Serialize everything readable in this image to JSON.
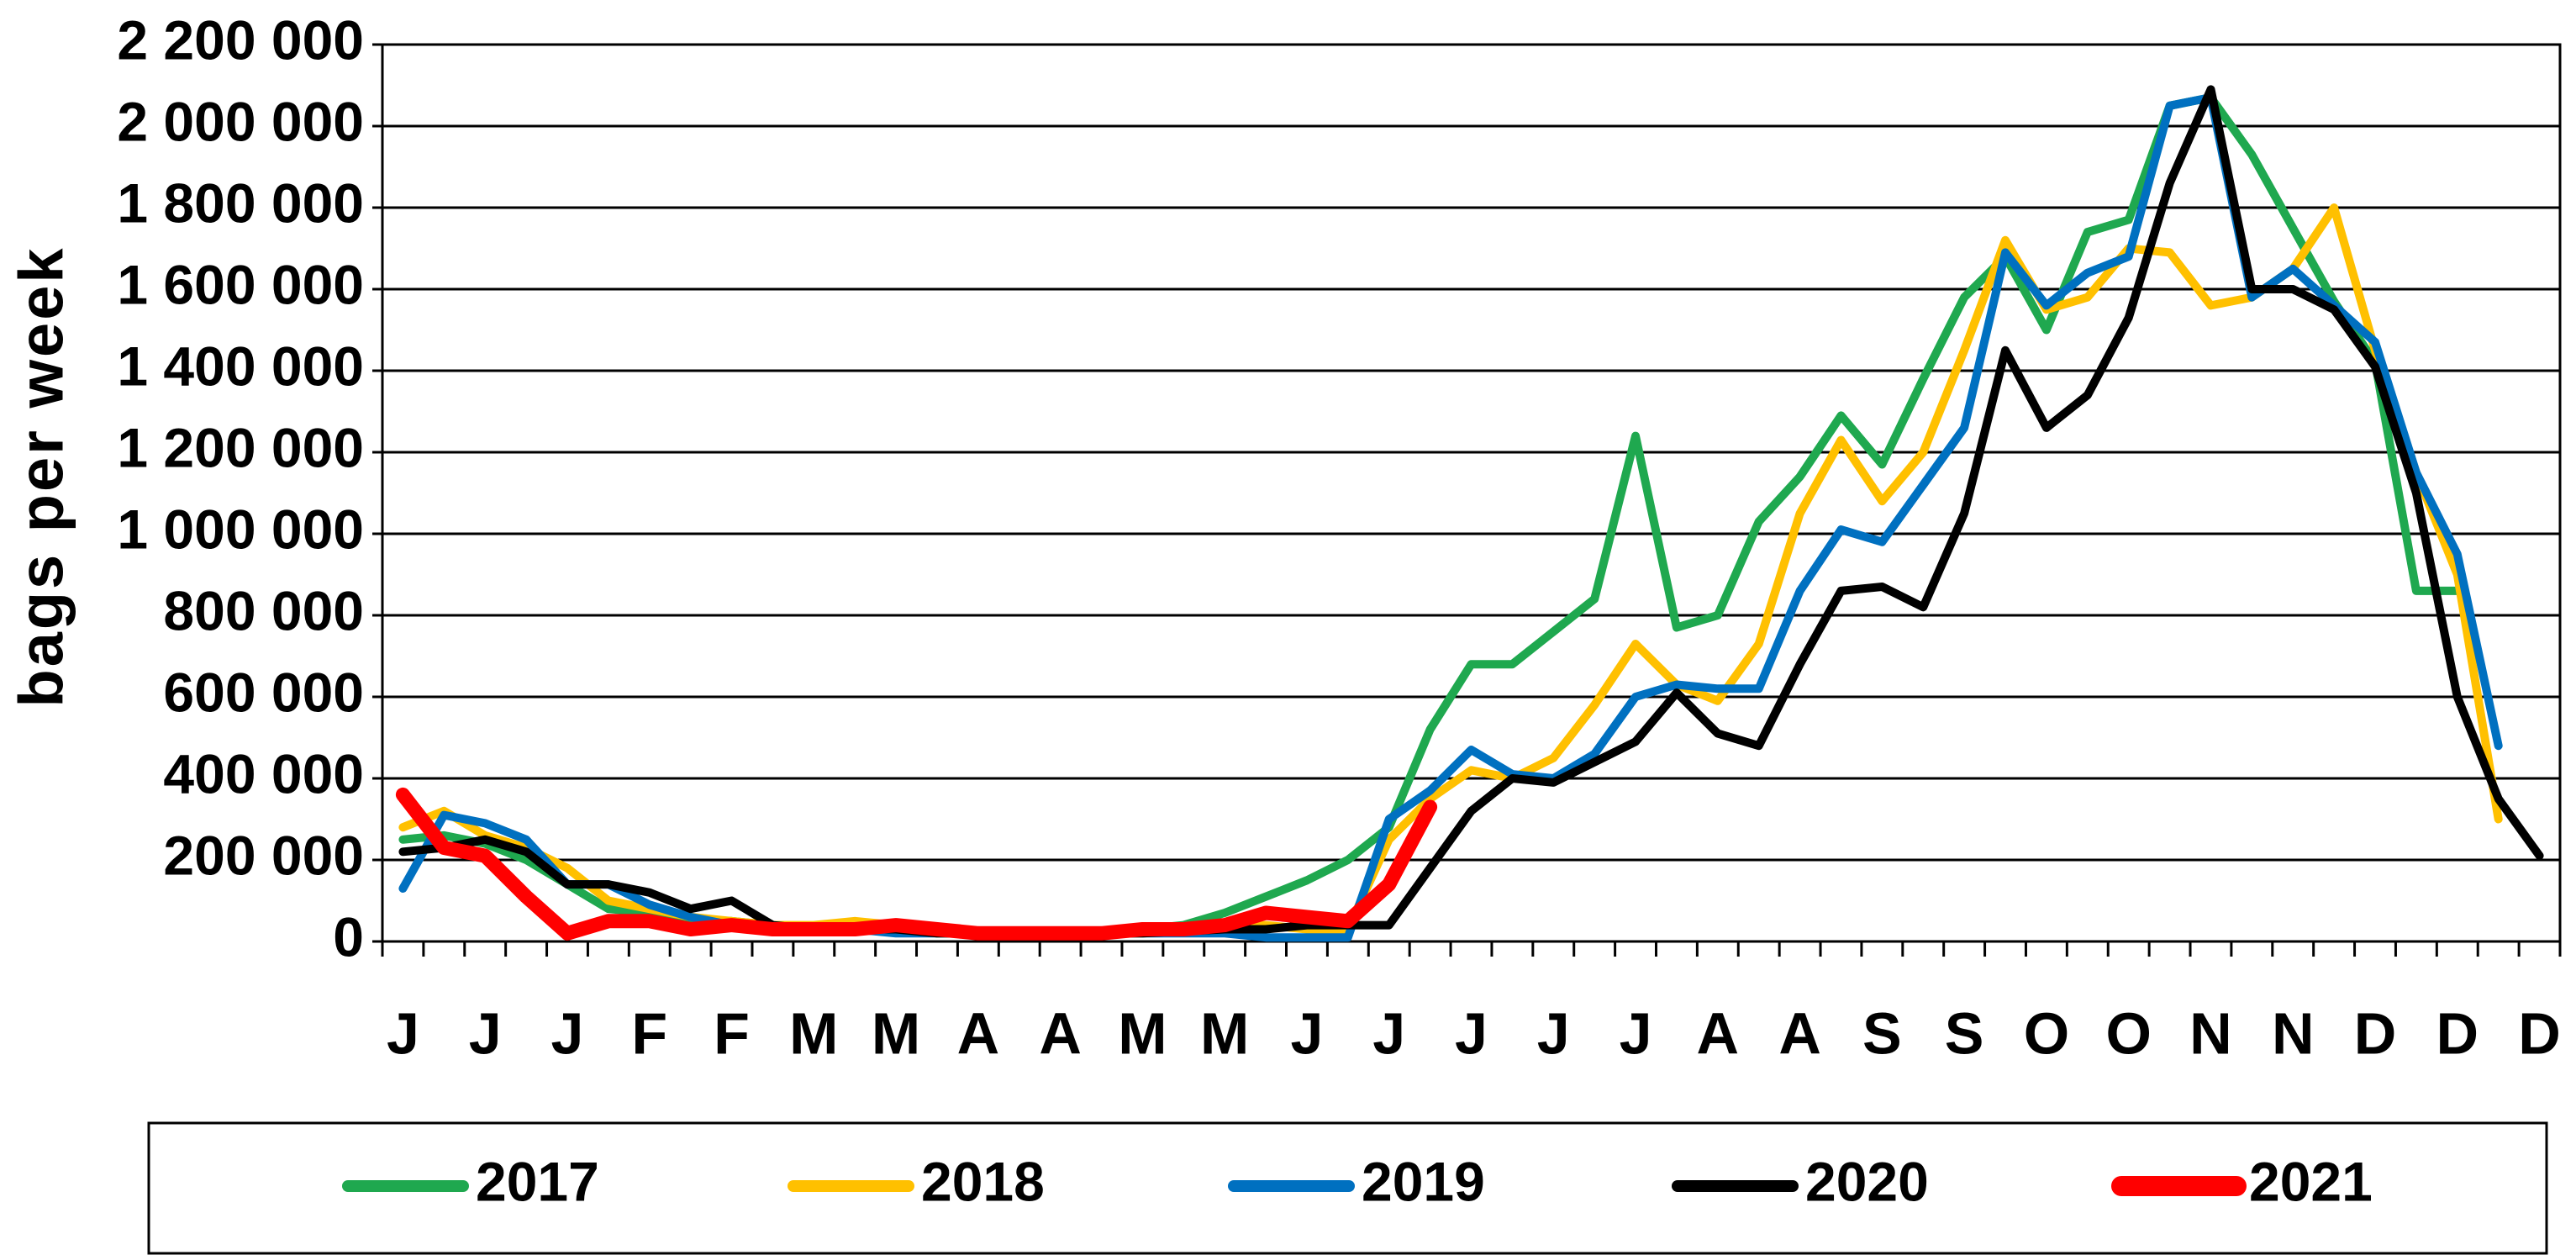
{
  "chart_data": {
    "type": "line",
    "y_label": "bags per week",
    "categories": [
      "J",
      null,
      "J",
      null,
      "J",
      null,
      "F",
      null,
      "F",
      null,
      "M",
      null,
      "M",
      null,
      "A",
      null,
      "A",
      null,
      "M",
      null,
      "M",
      null,
      "J",
      null,
      "J",
      null,
      "J",
      null,
      "J",
      null,
      "J",
      null,
      "A",
      null,
      "A",
      null,
      "S",
      null,
      "S",
      null,
      "O",
      null,
      "O",
      null,
      "N",
      null,
      "N",
      null,
      "D",
      null,
      "D",
      null,
      "D"
    ],
    "ylim": [
      0,
      2200000
    ],
    "yticks": [
      0,
      {
        "value": 200000,
        "label": "200 000"
      },
      {
        "value": 400000,
        "label": "400 000"
      },
      {
        "value": 600000,
        "label": "600 000"
      },
      {
        "value": 800000,
        "label": "800 000"
      },
      {
        "value": 1000000,
        "label": "1 000 000"
      },
      {
        "value": 1200000,
        "label": "1 200 000"
      },
      {
        "value": 1400000,
        "label": "1 400 000"
      },
      {
        "value": 1600000,
        "label": "1 600 000"
      },
      {
        "value": 1800000,
        "label": "1 800 000"
      },
      {
        "value": 2000000,
        "label": "2 000 000"
      },
      {
        "value": 2200000,
        "label": "2 200 000"
      }
    ],
    "grid": true,
    "legend": "bottom",
    "series": [
      {
        "name": "2017",
        "color": "#1fa84f",
        "values": [
          250000,
          260000,
          240000,
          200000,
          140000,
          80000,
          70000,
          50000,
          50000,
          40000,
          30000,
          30000,
          30000,
          20000,
          20000,
          20000,
          20000,
          25000,
          30000,
          40000,
          70000,
          110000,
          150000,
          200000,
          280000,
          520000,
          680000,
          680000,
          760000,
          840000,
          1240000,
          770000,
          800000,
          1030000,
          1140000,
          1290000,
          1170000,
          1380000,
          1580000,
          1680000,
          1500000,
          1740000,
          1770000,
          2050000,
          2070000,
          1930000,
          1750000,
          1570000,
          1420000,
          860000,
          860000,
          null,
          null
        ]
      },
      {
        "name": "2018",
        "color": "#ffc000",
        "values": [
          280000,
          320000,
          260000,
          230000,
          180000,
          100000,
          80000,
          60000,
          50000,
          40000,
          40000,
          50000,
          40000,
          30000,
          20000,
          20000,
          20000,
          20000,
          20000,
          25000,
          30000,
          40000,
          30000,
          30000,
          250000,
          350000,
          420000,
          400000,
          450000,
          580000,
          730000,
          630000,
          590000,
          730000,
          1050000,
          1230000,
          1080000,
          1200000,
          1450000,
          1720000,
          1550000,
          1580000,
          1700000,
          1690000,
          1560000,
          1580000,
          1650000,
          1800000,
          1450000,
          1150000,
          900000,
          300000,
          null
        ]
      },
      {
        "name": "2019",
        "color": "#0070c0",
        "values": [
          130000,
          310000,
          290000,
          250000,
          140000,
          140000,
          90000,
          60000,
          40000,
          30000,
          30000,
          30000,
          20000,
          20000,
          20000,
          20000,
          20000,
          20000,
          20000,
          20000,
          20000,
          10000,
          10000,
          10000,
          300000,
          370000,
          470000,
          410000,
          400000,
          460000,
          600000,
          630000,
          620000,
          620000,
          860000,
          1010000,
          980000,
          1120000,
          1260000,
          1690000,
          1560000,
          1640000,
          1680000,
          2050000,
          2070000,
          1580000,
          1650000,
          1560000,
          1470000,
          1150000,
          950000,
          480000,
          null
        ]
      },
      {
        "name": "2020",
        "color": "#000000",
        "values": [
          220000,
          230000,
          250000,
          220000,
          140000,
          140000,
          120000,
          80000,
          100000,
          40000,
          30000,
          30000,
          30000,
          20000,
          20000,
          20000,
          20000,
          20000,
          20000,
          25000,
          30000,
          30000,
          40000,
          40000,
          40000,
          180000,
          320000,
          400000,
          390000,
          440000,
          490000,
          610000,
          510000,
          480000,
          680000,
          860000,
          870000,
          820000,
          1050000,
          1450000,
          1260000,
          1340000,
          1530000,
          1860000,
          2090000,
          1600000,
          1600000,
          1550000,
          1410000,
          1100000,
          600000,
          350000,
          210000
        ]
      },
      {
        "name": "2021",
        "color": "#ff0000",
        "values": [
          360000,
          230000,
          210000,
          110000,
          20000,
          50000,
          50000,
          30000,
          40000,
          30000,
          30000,
          30000,
          40000,
          30000,
          20000,
          20000,
          20000,
          20000,
          30000,
          30000,
          40000,
          70000,
          60000,
          50000,
          140000,
          330000,
          null,
          null,
          null,
          null,
          null,
          null,
          null,
          null,
          null,
          null,
          null,
          null,
          null,
          null,
          null,
          null,
          null,
          null,
          null,
          null,
          null,
          null,
          null,
          null,
          null,
          null,
          null
        ]
      }
    ]
  }
}
